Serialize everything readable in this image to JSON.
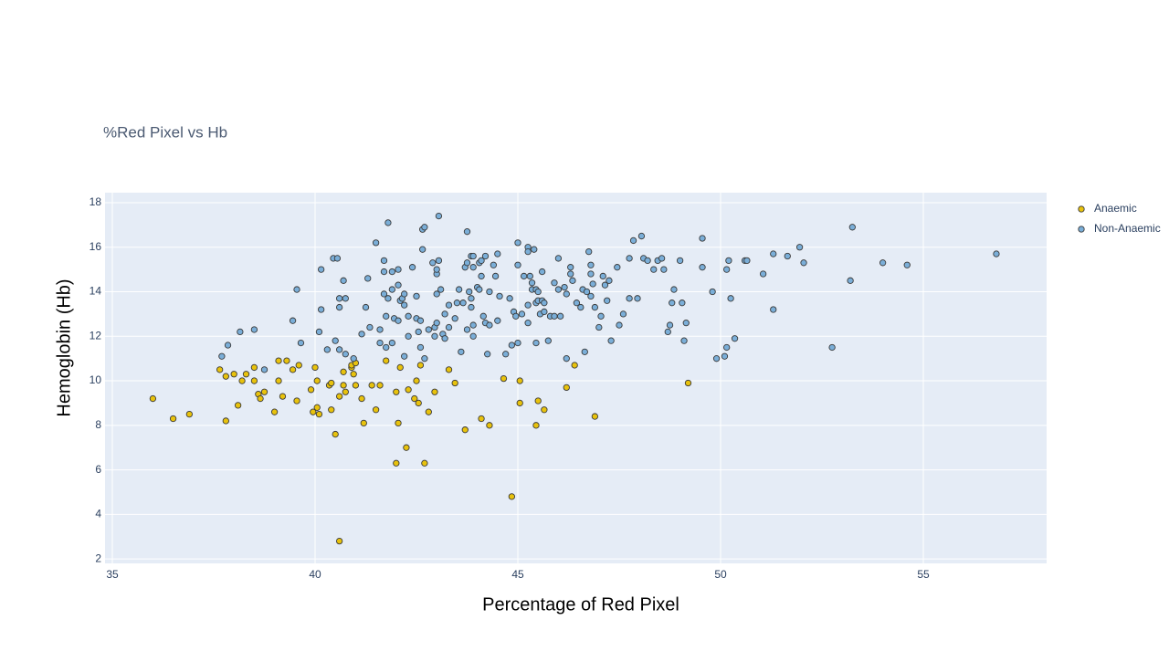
{
  "chart_data": {
    "type": "scatter",
    "title": "%Red Pixel vs Hb",
    "x_label": "Percentage of Red Pixel",
    "y_label": "Hemoglobin (Hb)",
    "xlim": [
      34.82,
      58.04
    ],
    "ylim": [
      1.8,
      18.45
    ],
    "xticks": [
      35,
      40,
      45,
      50,
      55
    ],
    "yticks": [
      2,
      4,
      6,
      8,
      10,
      12,
      14,
      16,
      18
    ],
    "grid": true,
    "legend": "right",
    "series": [
      {
        "name": "Anaemic",
        "color": "#e8c20c",
        "x": [
          36.0,
          36.5,
          36.9,
          37.65,
          37.8,
          37.8,
          38.0,
          38.1,
          38.2,
          38.3,
          38.5,
          38.5,
          38.6,
          38.65,
          38.75,
          39.0,
          39.1,
          39.1,
          39.2,
          39.3,
          39.45,
          39.55,
          39.6,
          39.9,
          39.95,
          40.0,
          40.05,
          40.05,
          40.1,
          40.35,
          40.4,
          40.4,
          40.5,
          40.6,
          40.7,
          40.7,
          40.75,
          40.9,
          40.9,
          40.95,
          41.0,
          41.0,
          41.15,
          41.2,
          41.4,
          41.5,
          41.6,
          41.75,
          42.0,
          42.05,
          42.0,
          42.1,
          42.25,
          42.3,
          42.45,
          42.5,
          42.55,
          42.6,
          42.7,
          42.8,
          42.95,
          43.3,
          43.45,
          43.7,
          44.1,
          44.3,
          44.65,
          44.85,
          45.05,
          45.05,
          45.45,
          45.5,
          45.65,
          46.2,
          46.4,
          46.9,
          49.2,
          40.6
        ],
        "values": [
          9.2,
          8.3,
          8.5,
          10.5,
          10.2,
          8.2,
          10.3,
          8.9,
          10.0,
          10.3,
          10.6,
          10.0,
          9.4,
          9.2,
          9.5,
          8.6,
          10.9,
          10.0,
          9.3,
          10.9,
          10.5,
          9.1,
          10.7,
          9.6,
          8.6,
          10.6,
          10.0,
          8.8,
          8.5,
          9.8,
          9.9,
          8.7,
          7.6,
          9.3,
          9.8,
          10.4,
          9.5,
          10.6,
          10.7,
          10.3,
          10.8,
          9.8,
          9.2,
          8.1,
          9.8,
          8.7,
          9.8,
          10.9,
          9.5,
          8.1,
          6.3,
          10.6,
          7.0,
          9.6,
          9.2,
          10.0,
          9.0,
          10.7,
          6.3,
          8.6,
          9.5,
          10.5,
          9.9,
          7.8,
          8.3,
          8.0,
          10.1,
          4.8,
          10.0,
          9.0,
          8.0,
          9.1,
          8.7,
          9.7,
          10.7,
          8.4,
          9.9,
          2.8
        ]
      },
      {
        "name": "Non-Anaemic",
        "color": "#7aaed8",
        "x": [
          37.7,
          37.85,
          38.15,
          38.5,
          38.75,
          39.45,
          39.55,
          39.65,
          40.1,
          40.15,
          40.15,
          40.3,
          40.45,
          40.55,
          40.5,
          40.6,
          40.6,
          40.7,
          40.6,
          40.75,
          40.75,
          40.95,
          41.15,
          41.25,
          41.3,
          41.35,
          41.5,
          41.6,
          41.6,
          41.7,
          41.7,
          41.7,
          41.75,
          41.75,
          41.8,
          41.8,
          41.9,
          41.9,
          41.9,
          41.95,
          42.05,
          42.05,
          42.05,
          42.1,
          42.15,
          42.2,
          42.2,
          42.2,
          42.3,
          42.3,
          42.4,
          42.5,
          42.5,
          42.55,
          42.6,
          42.6,
          42.65,
          42.65,
          42.7,
          42.7,
          42.8,
          42.9,
          42.95,
          42.95,
          43.0,
          43.0,
          43.0,
          43.0,
          43.05,
          43.05,
          43.1,
          43.15,
          43.2,
          43.2,
          43.3,
          43.3,
          43.45,
          43.5,
          43.55,
          43.6,
          43.65,
          43.7,
          43.75,
          43.75,
          43.75,
          43.8,
          43.85,
          43.85,
          43.85,
          43.9,
          43.9,
          43.9,
          43.9,
          44.0,
          44.05,
          44.05,
          44.1,
          44.1,
          44.15,
          44.2,
          44.2,
          44.25,
          44.3,
          44.3,
          44.4,
          44.45,
          44.5,
          44.5,
          44.55,
          44.7,
          44.8,
          44.85,
          44.9,
          44.95,
          45.0,
          45.0,
          45.0,
          45.1,
          45.15,
          45.25,
          45.25,
          45.25,
          45.25,
          45.3,
          45.35,
          45.35,
          45.4,
          45.45,
          45.45,
          45.45,
          45.5,
          45.5,
          45.55,
          45.6,
          45.6,
          45.65,
          45.65,
          45.75,
          45.8,
          45.9,
          45.9,
          46.0,
          46.0,
          46.05,
          46.15,
          46.2,
          46.2,
          46.3,
          46.3,
          46.35,
          46.45,
          46.55,
          46.6,
          46.65,
          46.7,
          46.75,
          46.8,
          46.8,
          46.8,
          46.85,
          46.9,
          47.0,
          47.05,
          47.1,
          47.15,
          47.2,
          47.25,
          47.3,
          47.45,
          47.5,
          47.6,
          47.75,
          47.75,
          47.85,
          47.95,
          48.05,
          48.1,
          48.2,
          48.35,
          48.45,
          48.55,
          48.6,
          48.7,
          48.75,
          48.8,
          48.85,
          49.0,
          49.05,
          49.1,
          49.15,
          49.55,
          49.55,
          49.8,
          49.9,
          50.1,
          50.15,
          50.15,
          50.2,
          50.25,
          50.35,
          50.6,
          50.65,
          51.05,
          51.3,
          51.3,
          51.65,
          51.95,
          52.05,
          52.75,
          53.2,
          53.25,
          54.0,
          54.6,
          56.8
        ],
        "values": [
          11.1,
          11.6,
          12.2,
          12.3,
          10.5,
          12.7,
          14.1,
          11.7,
          12.2,
          13.2,
          15.0,
          11.4,
          15.5,
          15.5,
          11.8,
          13.3,
          13.7,
          14.5,
          11.4,
          13.7,
          11.2,
          11.0,
          12.1,
          13.3,
          14.6,
          12.4,
          16.2,
          11.7,
          12.3,
          15.4,
          14.9,
          13.9,
          12.9,
          11.5,
          17.1,
          13.7,
          11.7,
          14.1,
          14.9,
          12.8,
          15.0,
          12.7,
          14.3,
          13.6,
          13.7,
          13.4,
          13.9,
          11.1,
          12.9,
          12.0,
          15.1,
          12.8,
          13.8,
          12.2,
          12.7,
          11.5,
          15.9,
          16.8,
          16.9,
          11.0,
          12.3,
          15.3,
          12.4,
          12.0,
          12.6,
          14.8,
          15.0,
          13.9,
          15.4,
          17.4,
          14.1,
          12.1,
          11.9,
          13.0,
          13.4,
          12.4,
          12.8,
          13.5,
          14.1,
          11.3,
          13.5,
          15.1,
          16.7,
          12.3,
          15.3,
          14.0,
          15.6,
          13.7,
          13.3,
          12.5,
          12.0,
          15.6,
          15.1,
          14.2,
          15.3,
          14.1,
          15.4,
          14.7,
          12.9,
          12.6,
          15.6,
          11.2,
          14.0,
          12.5,
          15.2,
          14.7,
          15.7,
          12.7,
          13.8,
          11.2,
          13.7,
          11.6,
          13.1,
          12.9,
          16.2,
          11.7,
          15.2,
          13.0,
          14.7,
          16.0,
          15.8,
          12.6,
          13.4,
          14.7,
          14.1,
          14.4,
          15.9,
          14.1,
          11.7,
          13.5,
          14.0,
          13.6,
          13.0,
          13.6,
          14.9,
          13.1,
          13.5,
          11.8,
          12.9,
          14.4,
          12.9,
          15.5,
          14.1,
          12.9,
          14.2,
          13.9,
          11.0,
          15.1,
          14.8,
          14.5,
          13.5,
          13.3,
          14.1,
          11.3,
          14.0,
          15.8,
          15.2,
          14.8,
          13.8,
          14.35,
          13.3,
          12.4,
          12.9,
          14.7,
          14.3,
          13.6,
          14.5,
          11.8,
          15.1,
          12.5,
          13.0,
          15.5,
          13.7,
          16.3,
          13.7,
          16.5,
          15.5,
          15.4,
          15.0,
          15.4,
          15.5,
          15.0,
          12.2,
          12.5,
          13.5,
          14.1,
          15.4,
          13.5,
          11.8,
          12.6,
          16.4,
          15.1,
          14.0,
          11.0,
          11.1,
          11.5,
          15.0,
          15.4,
          13.7,
          11.9,
          15.4,
          15.4,
          14.8,
          15.7,
          13.2,
          15.6,
          16.0,
          15.3,
          11.5,
          14.5,
          16.9,
          15.3,
          15.2,
          15.7
        ]
      }
    ]
  }
}
